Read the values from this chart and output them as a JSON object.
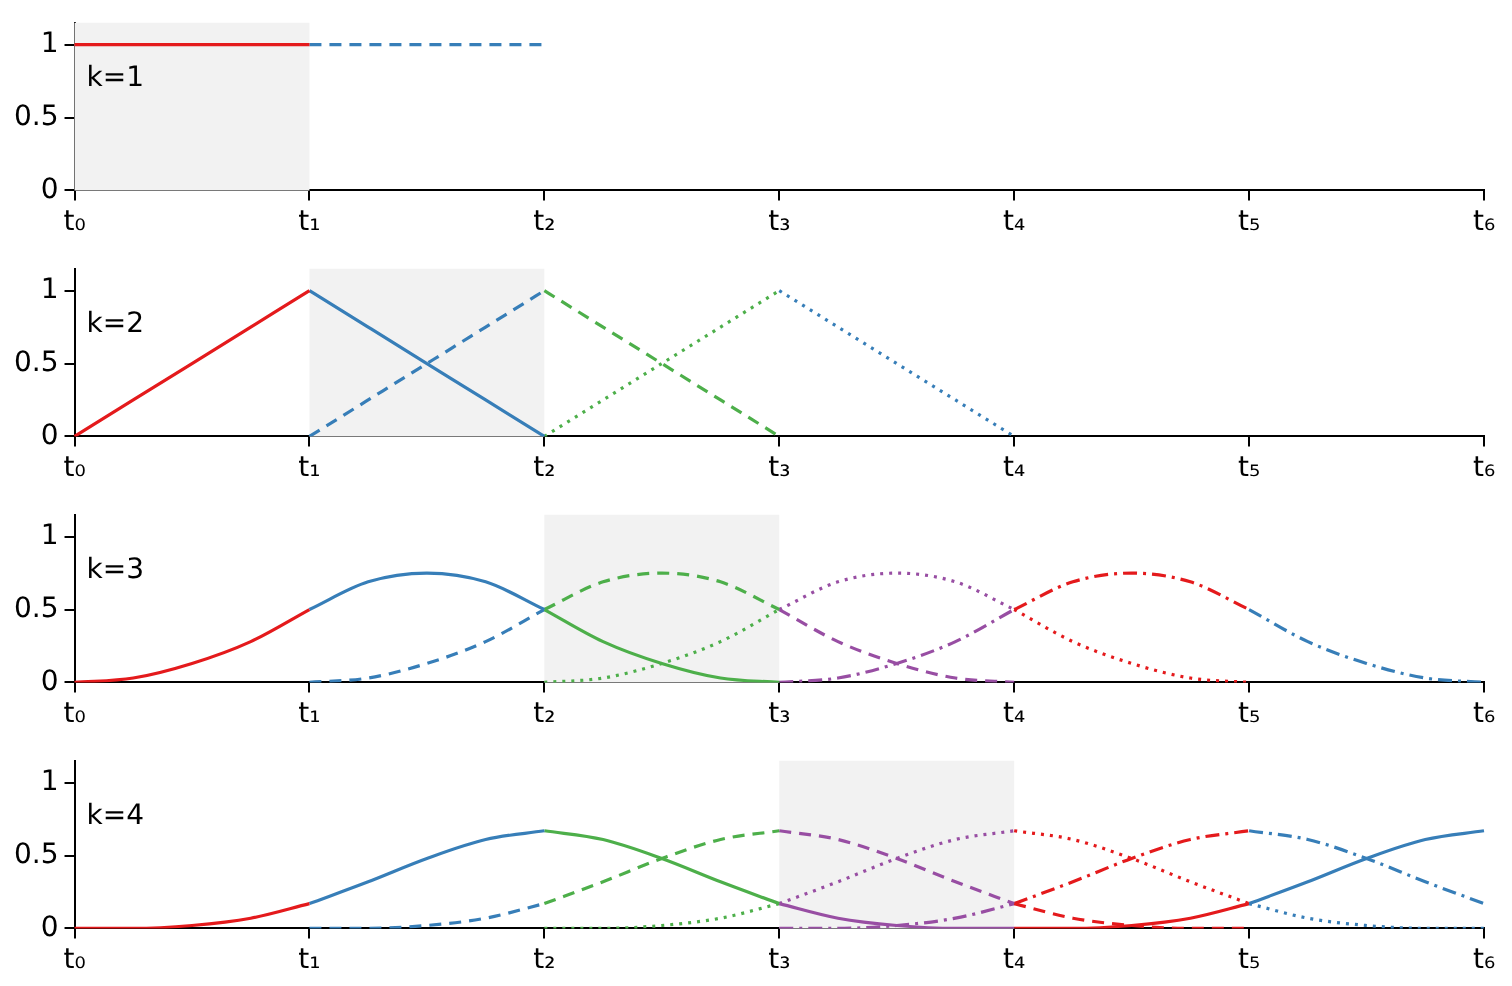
{
  "chart_data": [
    {
      "type": "line",
      "annotations": [
        "k=1"
      ],
      "categories": [
        "t₀",
        null,
        null,
        null,
        "t₁",
        null,
        null,
        null,
        "t₂",
        null,
        null,
        null,
        "t₃",
        null,
        null,
        null,
        "t₄",
        null,
        null,
        null,
        "t₅",
        null,
        null,
        null,
        "t₆"
      ],
      "ylim": [
        0,
        1.15
      ],
      "yticks": [
        0,
        0.5,
        1
      ],
      "grid": false,
      "legend": false,
      "marker": "none",
      "bands": [
        {
          "axis": "x",
          "from": "t₀",
          "to": "t₁",
          "color": "#f2f2f2"
        }
      ],
      "series": [
        {
          "color": "#e41a1c",
          "line_style": "solid",
          "values": [
            1,
            1,
            1,
            1,
            1,
            null,
            null,
            null,
            null,
            null,
            null,
            null,
            null,
            null,
            null,
            null,
            null,
            null,
            null,
            null,
            null,
            null,
            null,
            null,
            null
          ]
        },
        {
          "color": "#377eb8",
          "line_style": "dashed",
          "values": [
            null,
            null,
            null,
            null,
            1,
            1,
            1,
            1,
            1,
            null,
            null,
            null,
            null,
            null,
            null,
            null,
            null,
            null,
            null,
            null,
            null,
            null,
            null,
            null,
            null
          ]
        }
      ]
    },
    {
      "type": "line",
      "annotations": [
        "k=2"
      ],
      "categories": [
        "t₀",
        null,
        null,
        null,
        "t₁",
        null,
        null,
        null,
        "t₂",
        null,
        null,
        null,
        "t₃",
        null,
        null,
        null,
        "t₄",
        null,
        null,
        null,
        "t₅",
        null,
        null,
        null,
        "t₆"
      ],
      "ylim": [
        0,
        1.15
      ],
      "yticks": [
        0,
        0.5,
        1
      ],
      "grid": false,
      "legend": false,
      "marker": "none",
      "bands": [
        {
          "axis": "x",
          "from": "t₁",
          "to": "t₂",
          "color": "#f2f2f2"
        }
      ],
      "series": [
        {
          "color": "#e41a1c",
          "line_style": "solid",
          "values": [
            0,
            0.25,
            0.5,
            0.75,
            1,
            null,
            null,
            null,
            null,
            null,
            null,
            null,
            null,
            null,
            null,
            null,
            null,
            null,
            null,
            null,
            null,
            null,
            null,
            null,
            null
          ]
        },
        {
          "color": "#377eb8",
          "line_style": "solid",
          "values": [
            null,
            null,
            null,
            null,
            1,
            0.75,
            0.5,
            0.25,
            0,
            null,
            null,
            null,
            null,
            null,
            null,
            null,
            null,
            null,
            null,
            null,
            null,
            null,
            null,
            null,
            null
          ]
        },
        {
          "color": "#377eb8",
          "line_style": "dashed",
          "values": [
            null,
            null,
            null,
            null,
            0,
            0.25,
            0.5,
            0.75,
            1,
            null,
            null,
            null,
            null,
            null,
            null,
            null,
            null,
            null,
            null,
            null,
            null,
            null,
            null,
            null,
            null
          ]
        },
        {
          "color": "#4daf4a",
          "line_style": "dashed",
          "values": [
            null,
            null,
            null,
            null,
            null,
            null,
            null,
            null,
            1,
            0.75,
            0.5,
            0.25,
            0,
            null,
            null,
            null,
            null,
            null,
            null,
            null,
            null,
            null,
            null,
            null,
            null
          ]
        },
        {
          "color": "#4daf4a",
          "line_style": "dotted",
          "values": [
            null,
            null,
            null,
            null,
            null,
            null,
            null,
            null,
            0,
            0.25,
            0.5,
            0.75,
            1,
            null,
            null,
            null,
            null,
            null,
            null,
            null,
            null,
            null,
            null,
            null,
            null
          ]
        },
        {
          "color": "#377eb8",
          "line_style": "dotted",
          "values": [
            null,
            null,
            null,
            null,
            null,
            null,
            null,
            null,
            null,
            null,
            null,
            null,
            1,
            0.75,
            0.5,
            0.25,
            0,
            null,
            null,
            null,
            null,
            null,
            null,
            null,
            null
          ]
        }
      ]
    },
    {
      "type": "line",
      "annotations": [
        "k=3"
      ],
      "categories": [
        "t₀",
        null,
        null,
        null,
        "t₁",
        null,
        null,
        null,
        "t₂",
        null,
        null,
        null,
        "t₃",
        null,
        null,
        null,
        "t₄",
        null,
        null,
        null,
        "t₅",
        null,
        null,
        null,
        "t₆"
      ],
      "ylim": [
        0,
        1.15
      ],
      "yticks": [
        0,
        0.5,
        1
      ],
      "grid": false,
      "legend": false,
      "marker": "none",
      "bands": [
        {
          "axis": "x",
          "from": "t₂",
          "to": "t₃",
          "color": "#f2f2f2"
        }
      ],
      "series": [
        {
          "color": "#e41a1c",
          "line_style": "solid",
          "values": [
            0,
            0.03,
            0.13,
            0.28,
            0.5,
            null,
            null,
            null,
            null,
            null,
            null,
            null,
            null,
            null,
            null,
            null,
            null,
            null,
            null,
            null,
            null,
            null,
            null,
            null,
            null
          ]
        },
        {
          "color": "#377eb8",
          "line_style": "solid",
          "values": [
            null,
            null,
            null,
            null,
            0.5,
            0.69,
            0.75,
            0.69,
            0.5,
            null,
            null,
            null,
            null,
            null,
            null,
            null,
            null,
            null,
            null,
            null,
            null,
            null,
            null,
            null,
            null
          ]
        },
        {
          "color": "#4daf4a",
          "line_style": "solid",
          "values": [
            null,
            null,
            null,
            null,
            null,
            null,
            null,
            null,
            0.5,
            0.28,
            0.13,
            0.03,
            0,
            null,
            null,
            null,
            null,
            null,
            null,
            null,
            null,
            null,
            null,
            null,
            null
          ]
        },
        {
          "color": "#377eb8",
          "line_style": "dashed",
          "values": [
            null,
            null,
            null,
            null,
            0,
            0.03,
            0.13,
            0.28,
            0.5,
            null,
            null,
            null,
            null,
            null,
            null,
            null,
            null,
            null,
            null,
            null,
            null,
            null,
            null,
            null,
            null
          ]
        },
        {
          "color": "#4daf4a",
          "line_style": "dashed",
          "values": [
            null,
            null,
            null,
            null,
            null,
            null,
            null,
            null,
            0.5,
            0.69,
            0.75,
            0.69,
            0.5,
            null,
            null,
            null,
            null,
            null,
            null,
            null,
            null,
            null,
            null,
            null,
            null
          ]
        },
        {
          "color": "#984ea3",
          "line_style": "dashed",
          "values": [
            null,
            null,
            null,
            null,
            null,
            null,
            null,
            null,
            null,
            null,
            null,
            null,
            0.5,
            0.28,
            0.13,
            0.03,
            0,
            null,
            null,
            null,
            null,
            null,
            null,
            null,
            null
          ]
        },
        {
          "color": "#4daf4a",
          "line_style": "dotted",
          "values": [
            null,
            null,
            null,
            null,
            null,
            null,
            null,
            null,
            0,
            0.03,
            0.13,
            0.28,
            0.5,
            null,
            null,
            null,
            null,
            null,
            null,
            null,
            null,
            null,
            null,
            null,
            null
          ]
        },
        {
          "color": "#984ea3",
          "line_style": "dotted",
          "values": [
            null,
            null,
            null,
            null,
            null,
            null,
            null,
            null,
            null,
            null,
            null,
            null,
            0.5,
            0.69,
            0.75,
            0.69,
            0.5,
            null,
            null,
            null,
            null,
            null,
            null,
            null,
            null
          ]
        },
        {
          "color": "#e41a1c",
          "line_style": "dotted",
          "values": [
            null,
            null,
            null,
            null,
            null,
            null,
            null,
            null,
            null,
            null,
            null,
            null,
            null,
            null,
            null,
            null,
            0.5,
            0.28,
            0.13,
            0.03,
            0,
            null,
            null,
            null,
            null
          ]
        },
        {
          "color": "#984ea3",
          "line_style": "dashdot",
          "values": [
            null,
            null,
            null,
            null,
            null,
            null,
            null,
            null,
            null,
            null,
            null,
            null,
            0,
            0.03,
            0.13,
            0.28,
            0.5,
            null,
            null,
            null,
            null,
            null,
            null,
            null,
            null
          ]
        },
        {
          "color": "#e41a1c",
          "line_style": "dashdot",
          "values": [
            null,
            null,
            null,
            null,
            null,
            null,
            null,
            null,
            null,
            null,
            null,
            null,
            null,
            null,
            null,
            null,
            0.5,
            0.69,
            0.75,
            0.69,
            0.5,
            null,
            null,
            null,
            null
          ]
        },
        {
          "color": "#377eb8",
          "line_style": "dashdot",
          "values": [
            null,
            null,
            null,
            null,
            null,
            null,
            null,
            null,
            null,
            null,
            null,
            null,
            null,
            null,
            null,
            null,
            null,
            null,
            null,
            null,
            0.5,
            0.28,
            0.13,
            0.03,
            0
          ]
        }
      ]
    },
    {
      "type": "line",
      "annotations": [
        "k=4"
      ],
      "categories": [
        "t₀",
        null,
        null,
        null,
        "t₁",
        null,
        null,
        null,
        "t₂",
        null,
        null,
        null,
        "t₃",
        null,
        null,
        null,
        "t₄",
        null,
        null,
        null,
        "t₅",
        null,
        null,
        null,
        "t₆"
      ],
      "ylim": [
        0,
        1.15
      ],
      "yticks": [
        0,
        0.5,
        1
      ],
      "grid": false,
      "legend": false,
      "marker": "none",
      "bands": [
        {
          "axis": "x",
          "from": "t₃",
          "to": "t₄",
          "color": "#f2f2f2"
        }
      ],
      "series": [
        {
          "color": "#e41a1c",
          "line_style": "solid",
          "values": [
            0,
            0,
            0.02,
            0.07,
            0.17,
            null,
            null,
            null,
            null,
            null,
            null,
            null,
            null,
            null,
            null,
            null,
            null,
            null,
            null,
            null,
            null,
            null,
            null,
            null,
            null
          ]
        },
        {
          "color": "#377eb8",
          "line_style": "solid",
          "values": [
            null,
            null,
            null,
            null,
            0.17,
            0.32,
            0.48,
            0.61,
            0.67,
            null,
            null,
            null,
            null,
            null,
            null,
            null,
            null,
            null,
            null,
            null,
            null,
            null,
            null,
            null,
            null
          ]
        },
        {
          "color": "#4daf4a",
          "line_style": "solid",
          "values": [
            null,
            null,
            null,
            null,
            null,
            null,
            null,
            null,
            0.67,
            0.61,
            0.48,
            0.32,
            0.17,
            null,
            null,
            null,
            null,
            null,
            null,
            null,
            null,
            null,
            null,
            null,
            null
          ]
        },
        {
          "color": "#984ea3",
          "line_style": "solid",
          "values": [
            null,
            null,
            null,
            null,
            null,
            null,
            null,
            null,
            null,
            null,
            null,
            null,
            0.17,
            0.07,
            0.02,
            0,
            0,
            null,
            null,
            null,
            null,
            null,
            null,
            null,
            null
          ]
        },
        {
          "color": "#377eb8",
          "line_style": "dashed",
          "values": [
            null,
            null,
            null,
            null,
            0,
            0,
            0.02,
            0.07,
            0.17,
            null,
            null,
            null,
            null,
            null,
            null,
            null,
            null,
            null,
            null,
            null,
            null,
            null,
            null,
            null,
            null
          ]
        },
        {
          "color": "#4daf4a",
          "line_style": "dashed",
          "values": [
            null,
            null,
            null,
            null,
            null,
            null,
            null,
            null,
            0.17,
            0.32,
            0.48,
            0.61,
            0.67,
            null,
            null,
            null,
            null,
            null,
            null,
            null,
            null,
            null,
            null,
            null,
            null
          ]
        },
        {
          "color": "#984ea3",
          "line_style": "dashed",
          "values": [
            null,
            null,
            null,
            null,
            null,
            null,
            null,
            null,
            null,
            null,
            null,
            null,
            0.67,
            0.61,
            0.48,
            0.32,
            0.17,
            null,
            null,
            null,
            null,
            null,
            null,
            null,
            null
          ]
        },
        {
          "color": "#e41a1c",
          "line_style": "dashed",
          "values": [
            null,
            null,
            null,
            null,
            null,
            null,
            null,
            null,
            null,
            null,
            null,
            null,
            null,
            null,
            null,
            null,
            0.17,
            0.07,
            0.02,
            0,
            0,
            null,
            null,
            null,
            null
          ]
        },
        {
          "color": "#4daf4a",
          "line_style": "dotted",
          "values": [
            null,
            null,
            null,
            null,
            null,
            null,
            null,
            null,
            0,
            0,
            0.02,
            0.07,
            0.17,
            null,
            null,
            null,
            null,
            null,
            null,
            null,
            null,
            null,
            null,
            null,
            null
          ]
        },
        {
          "color": "#984ea3",
          "line_style": "dotted",
          "values": [
            null,
            null,
            null,
            null,
            null,
            null,
            null,
            null,
            null,
            null,
            null,
            null,
            0.17,
            0.32,
            0.48,
            0.61,
            0.67,
            null,
            null,
            null,
            null,
            null,
            null,
            null,
            null
          ]
        },
        {
          "color": "#e41a1c",
          "line_style": "dotted",
          "values": [
            null,
            null,
            null,
            null,
            null,
            null,
            null,
            null,
            null,
            null,
            null,
            null,
            null,
            null,
            null,
            null,
            0.67,
            0.61,
            0.48,
            0.32,
            0.17,
            null,
            null,
            null,
            null
          ]
        },
        {
          "color": "#377eb8",
          "line_style": "dotted",
          "values": [
            null,
            null,
            null,
            null,
            null,
            null,
            null,
            null,
            null,
            null,
            null,
            null,
            null,
            null,
            null,
            null,
            null,
            null,
            null,
            null,
            0.17,
            0.07,
            0.02,
            0,
            0
          ]
        },
        {
          "color": "#984ea3",
          "line_style": "dashdot",
          "values": [
            null,
            null,
            null,
            null,
            null,
            null,
            null,
            null,
            null,
            null,
            null,
            null,
            0,
            0,
            0.02,
            0.07,
            0.17,
            null,
            null,
            null,
            null,
            null,
            null,
            null,
            null
          ]
        },
        {
          "color": "#e41a1c",
          "line_style": "dashdot",
          "values": [
            null,
            null,
            null,
            null,
            null,
            null,
            null,
            null,
            null,
            null,
            null,
            null,
            null,
            null,
            null,
            null,
            0.17,
            0.32,
            0.48,
            0.61,
            0.67,
            null,
            null,
            null,
            null
          ]
        },
        {
          "color": "#377eb8",
          "line_style": "dashdot",
          "values": [
            null,
            null,
            null,
            null,
            null,
            null,
            null,
            null,
            null,
            null,
            null,
            null,
            null,
            null,
            null,
            null,
            null,
            null,
            null,
            null,
            0.67,
            0.61,
            0.48,
            0.32,
            0.17
          ]
        },
        {
          "color": "#e41a1c",
          "line_style": "solid",
          "values": [
            null,
            null,
            null,
            null,
            null,
            null,
            null,
            null,
            null,
            null,
            null,
            null,
            null,
            null,
            null,
            null,
            0,
            0,
            0.02,
            0.07,
            0.17,
            null,
            null,
            null,
            null
          ]
        },
        {
          "color": "#377eb8",
          "line_style": "solid",
          "values": [
            null,
            null,
            null,
            null,
            null,
            null,
            null,
            null,
            null,
            null,
            null,
            null,
            null,
            null,
            null,
            null,
            null,
            null,
            null,
            null,
            0.17,
            0.32,
            0.48,
            0.61,
            0.67
          ]
        }
      ]
    }
  ]
}
